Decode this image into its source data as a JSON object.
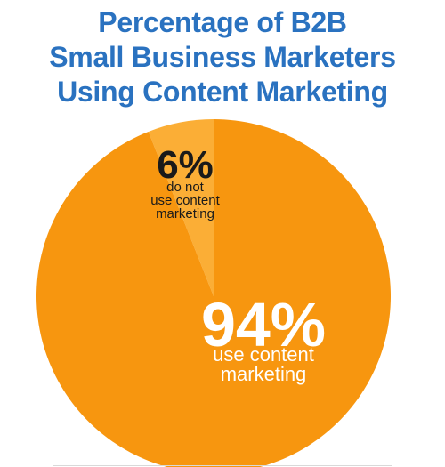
{
  "chart_data": {
    "type": "pie",
    "title": "Percentage of B2B Small Business Marketers Using Content Marketing",
    "title_lines": [
      "Percentage of B2B",
      "Small Business Marketers",
      "Using Content Marketing"
    ],
    "slices": [
      {
        "name": "use content marketing",
        "value": 94,
        "label_value": "94%",
        "label_lines": [
          "use content",
          "marketing"
        ],
        "color": "#f7960f"
      },
      {
        "name": "do not use content marketing",
        "value": 6,
        "label_value": "6%",
        "label_lines": [
          "do not",
          "use content",
          "marketing"
        ],
        "color": "#fbae36"
      }
    ],
    "label_colors": {
      "large_slice": "#ffffff",
      "small_slice": "#1a1a1a"
    },
    "legend": "none"
  }
}
